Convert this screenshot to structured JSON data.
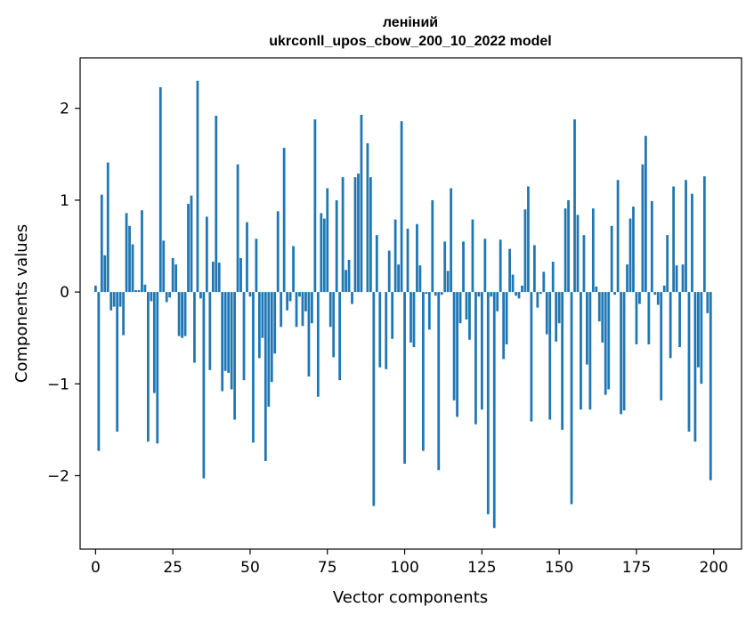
{
  "chart_data": {
    "type": "bar",
    "title_line1": "леніний",
    "title_line2": "ukrconll_upos_cbow_200_10_2022 model",
    "xlabel": "Vector components",
    "ylabel": "Components values",
    "xlim": [
      -5,
      209
    ],
    "ylim": [
      -2.8,
      2.55
    ],
    "xticks": [
      0,
      25,
      50,
      75,
      100,
      125,
      150,
      175,
      200
    ],
    "yticks": [
      -2,
      -1,
      0,
      1,
      2
    ],
    "ytick_labels": [
      "−2",
      "−1",
      "0",
      "1",
      "2"
    ],
    "grid": false,
    "bar_color": "#1f77b4",
    "values": [
      0.07,
      -1.73,
      1.06,
      0.4,
      1.41,
      -0.2,
      -0.16,
      -1.52,
      -0.16,
      -0.47,
      0.86,
      0.72,
      0.52,
      0.02,
      0.02,
      0.89,
      0.08,
      -1.63,
      -0.1,
      -1.1,
      -1.65,
      2.23,
      0.56,
      -0.11,
      -0.06,
      0.37,
      0.3,
      -0.48,
      -0.5,
      -0.48,
      0.96,
      1.05,
      -0.77,
      2.3,
      -0.07,
      -2.03,
      0.82,
      -0.85,
      0.33,
      1.92,
      0.32,
      -1.08,
      -0.86,
      -0.88,
      -1.06,
      -1.39,
      1.39,
      0.37,
      -0.96,
      0.76,
      -0.05,
      -1.64,
      0.58,
      -0.72,
      -0.5,
      -1.84,
      -1.25,
      -0.98,
      -0.67,
      0.88,
      -0.38,
      1.57,
      -0.2,
      -0.1,
      0.5,
      -0.38,
      -0.05,
      -0.37,
      -0.21,
      -0.92,
      -0.34,
      1.88,
      -1.14,
      0.86,
      0.8,
      1.13,
      -0.38,
      -0.71,
      1.0,
      -0.96,
      1.25,
      0.24,
      0.35,
      -0.13,
      1.25,
      1.29,
      1.93,
      0.0,
      1.62,
      1.25,
      -2.33,
      0.62,
      -0.82,
      0.0,
      -0.84,
      0.45,
      -0.51,
      0.79,
      0.3,
      1.86,
      -1.87,
      0.69,
      -0.55,
      -0.6,
      0.74,
      0.29,
      -1.73,
      -0.02,
      -0.41,
      1.0,
      -0.04,
      -1.94,
      -0.03,
      0.55,
      0.23,
      1.13,
      -1.18,
      -1.36,
      -0.34,
      0.55,
      -0.3,
      -0.52,
      0.79,
      -1.44,
      -0.05,
      -1.28,
      0.58,
      -2.42,
      -0.05,
      -2.57,
      -0.21,
      0.57,
      -0.73,
      -0.57,
      0.47,
      0.19,
      -0.04,
      -0.07,
      0.07,
      0.9,
      1.15,
      -1.41,
      0.51,
      -0.17,
      -0.02,
      0.22,
      -0.46,
      -1.39,
      0.33,
      -0.54,
      -0.34,
      -1.5,
      0.91,
      1.0,
      -2.31,
      1.88,
      0.84,
      -1.28,
      0.62,
      -0.79,
      -1.28,
      0.91,
      0.06,
      -0.32,
      -0.55,
      -1.12,
      -1.06,
      0.72,
      -0.03,
      1.22,
      -1.33,
      -1.29,
      0.3,
      0.8,
      0.93,
      -0.57,
      -0.13,
      1.39,
      1.7,
      -0.57,
      0.99,
      -0.03,
      -0.14,
      -1.18,
      0.07,
      0.62,
      -0.72,
      1.15,
      0.29,
      -0.6,
      0.3,
      1.22,
      -1.52,
      1.07,
      -1.63,
      -0.82,
      -1.0,
      1.26,
      -0.23,
      -2.05
    ]
  }
}
